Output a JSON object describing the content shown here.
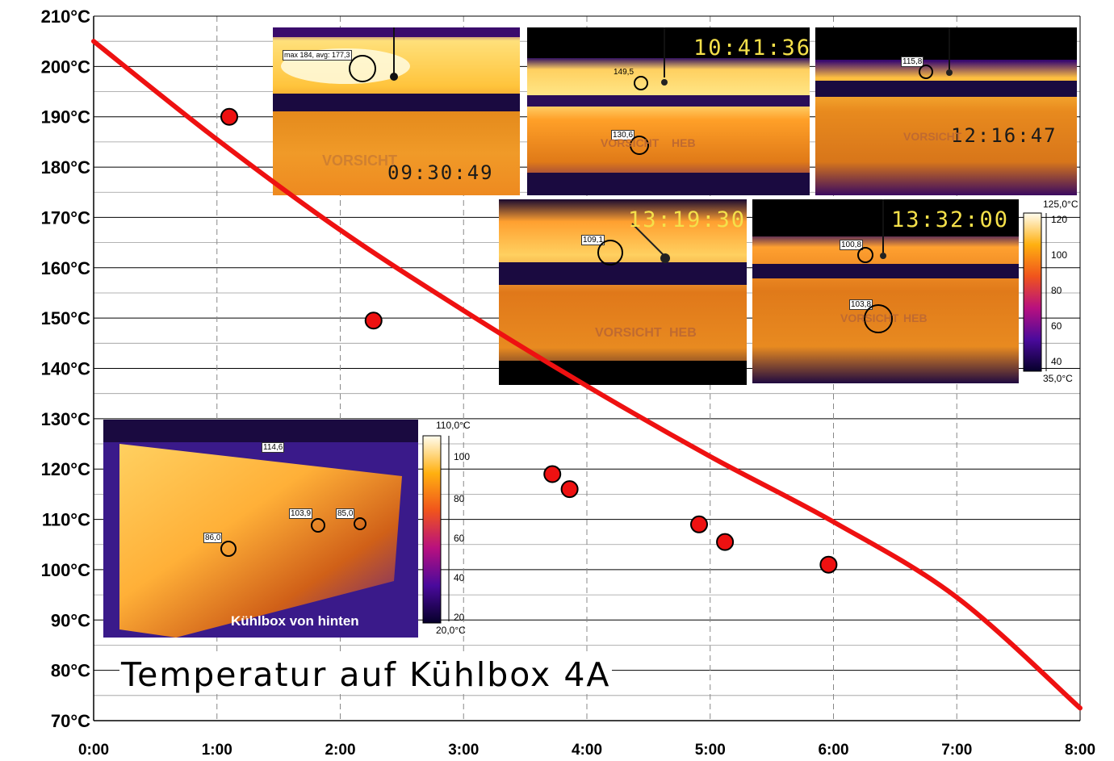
{
  "chart_data": {
    "type": "scatter",
    "title": "Temperatur auf Kühlbox 4A",
    "xlabel": "",
    "ylabel": "",
    "x_tick_labels": [
      "0:00",
      "1:00",
      "2:00",
      "3:00",
      "4:00",
      "5:00",
      "6:00",
      "7:00",
      "8:00"
    ],
    "y_tick_labels": [
      "70°C",
      "80°C",
      "90°C",
      "100°C",
      "110°C",
      "120°C",
      "130°C",
      "140°C",
      "150°C",
      "160°C",
      "170°C",
      "180°C",
      "190°C",
      "200°C",
      "210°C"
    ],
    "xlim_hours": [
      0,
      8
    ],
    "ylim": [
      70,
      210
    ],
    "grid": true,
    "series": [
      {
        "type": "scatter",
        "color": "#ee1111",
        "x_hours": [
          1.1,
          2.27,
          3.72,
          3.86,
          4.91,
          5.12,
          5.96
        ],
        "y": [
          190,
          149.5,
          119,
          116,
          109,
          105.5,
          101
        ]
      },
      {
        "type": "line",
        "color": "#ee1111",
        "x_hours": [
          0,
          1,
          2,
          3,
          4,
          5,
          6,
          7,
          8
        ],
        "y": [
          205,
          185.5,
          167.5,
          151.5,
          136.5,
          122.5,
          109.5,
          94.5,
          72.5
        ]
      }
    ],
    "thermal_images": [
      {
        "time": "09:30:49",
        "readout": "max 184, avg: 177,3"
      },
      {
        "time": "10:41:36",
        "spots": [
          "149,5",
          "130,6"
        ]
      },
      {
        "time": "12:16:47",
        "spots": [
          "115,8"
        ]
      },
      {
        "time": "13:19:30",
        "spots": [
          "109,1"
        ]
      },
      {
        "time": "13:32:00",
        "spots": [
          "100,8",
          "103,8"
        ]
      }
    ],
    "scale_right": {
      "max": "125,0°C",
      "min": "35,0°C",
      "ticks": [
        "120",
        "100",
        "80",
        "60",
        "40"
      ]
    },
    "inset": {
      "caption": "Kühlbox von hinten",
      "spots": [
        "114,6",
        "103,9",
        "85,0",
        "86,0"
      ],
      "scale_max": "110,0°C",
      "scale_min": "20,0°C",
      "scale_ticks": [
        "100",
        "80",
        "60",
        "40",
        "20"
      ]
    },
    "image_texts": [
      "VORSICHT",
      "HEB",
      "VORSICHT",
      "HEB",
      "VORSICHT",
      "VORSICHT",
      "HEB",
      "VORSICHT",
      "HEB"
    ]
  }
}
